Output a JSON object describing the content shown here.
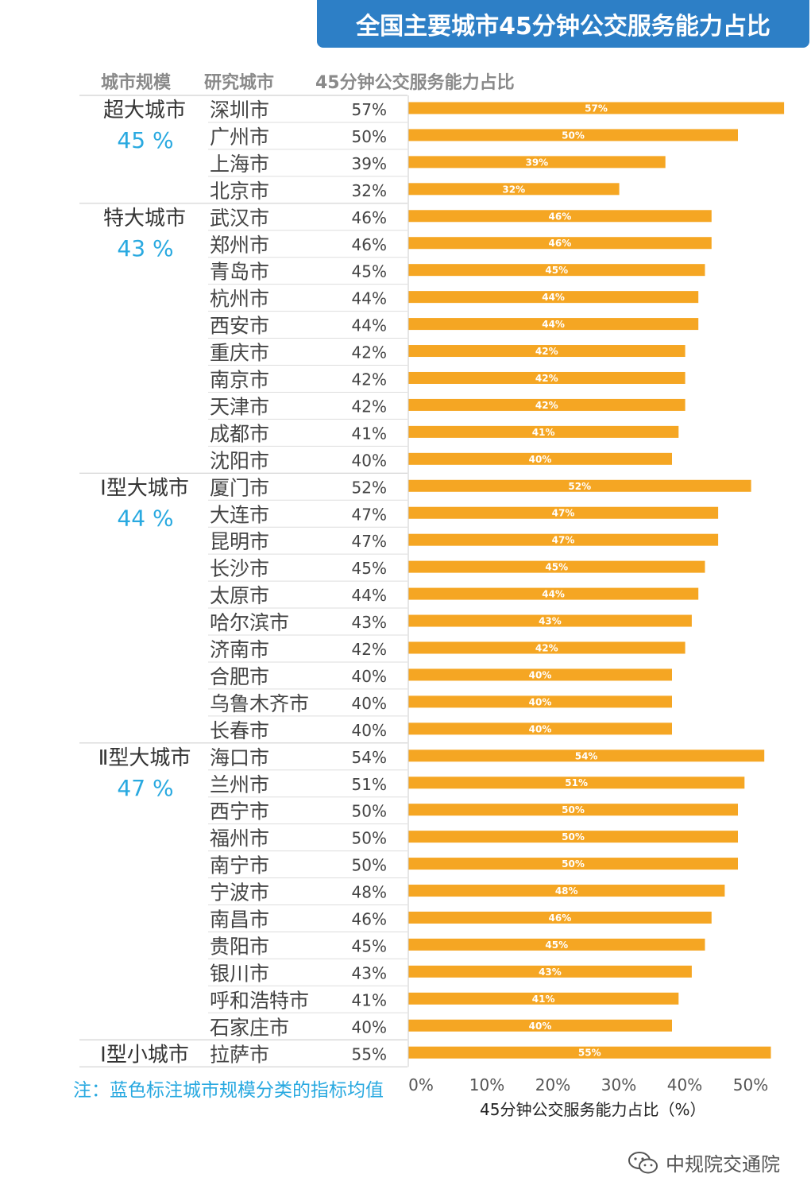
{
  "title": "全国主要城市45分钟公交服务能力占比",
  "headers": {
    "scale": "城市规模",
    "city": "研究城市",
    "value": "45分钟公交服务能力占比"
  },
  "groups": [
    {
      "name": "超大城市",
      "avg": "45 %",
      "cities": [
        "深圳市",
        "广州市",
        "上海市",
        "北京市"
      ],
      "values": [
        57,
        50,
        39,
        32
      ]
    },
    {
      "name": "特大城市",
      "avg": "43 %",
      "cities": [
        "武汉市",
        "郑州市",
        "青岛市",
        "杭州市",
        "西安市",
        "重庆市",
        "南京市",
        "天津市",
        "成都市",
        "沈阳市"
      ],
      "values": [
        46,
        46,
        45,
        44,
        44,
        42,
        42,
        42,
        41,
        40
      ]
    },
    {
      "name": "Ⅰ型大城市",
      "avg": "44 %",
      "cities": [
        "厦门市",
        "大连市",
        "昆明市",
        "长沙市",
        "太原市",
        "哈尔滨市",
        "济南市",
        "合肥市",
        "乌鲁木齐市",
        "长春市"
      ],
      "values": [
        52,
        47,
        47,
        45,
        44,
        43,
        42,
        40,
        40,
        40
      ]
    },
    {
      "name": "Ⅱ型大城市",
      "avg": "47 %",
      "cities": [
        "海口市",
        "兰州市",
        "西宁市",
        "福州市",
        "南宁市",
        "宁波市",
        "南昌市",
        "贵阳市",
        "银川市",
        "呼和浩特市",
        "石家庄市"
      ],
      "values": [
        54,
        51,
        50,
        50,
        50,
        48,
        46,
        45,
        43,
        41,
        40
      ]
    },
    {
      "name": "Ⅰ型小城市",
      "avg": "",
      "cities": [
        "拉萨市"
      ],
      "values": [
        55
      ]
    }
  ],
  "chart_data": {
    "type": "bar",
    "orientation": "horizontal",
    "categories": [
      "深圳市",
      "广州市",
      "上海市",
      "北京市",
      "武汉市",
      "郑州市",
      "青岛市",
      "杭州市",
      "西安市",
      "重庆市",
      "南京市",
      "天津市",
      "成都市",
      "沈阳市",
      "厦门市",
      "大连市",
      "昆明市",
      "长沙市",
      "太原市",
      "哈尔滨市",
      "济南市",
      "合肥市",
      "乌鲁木齐市",
      "长春市",
      "海口市",
      "兰州市",
      "西宁市",
      "福州市",
      "南宁市",
      "宁波市",
      "南昌市",
      "贵阳市",
      "银川市",
      "呼和浩特市",
      "石家庄市",
      "拉萨市"
    ],
    "values": [
      57,
      50,
      39,
      32,
      46,
      46,
      45,
      44,
      44,
      42,
      42,
      42,
      41,
      40,
      52,
      47,
      47,
      45,
      44,
      43,
      42,
      40,
      40,
      40,
      54,
      51,
      50,
      50,
      50,
      48,
      46,
      45,
      43,
      41,
      40,
      55
    ],
    "xlabel": "45分钟公交服务能力占比（%）",
    "xticks": [
      "0%",
      "10%",
      "20%",
      "30%",
      "40%",
      "50%"
    ],
    "xlim": [
      0,
      58
    ],
    "bar_color": "#f5a623",
    "avg_color": "#29a9e0",
    "grid": false
  },
  "footnote": "注：蓝色标注城市规模分类的指标均值",
  "watermark": "中规院交通院"
}
